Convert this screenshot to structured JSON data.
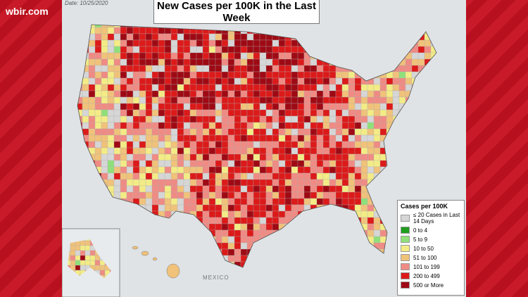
{
  "watermark": "wbir.com",
  "date": "Date: 10/25/2020",
  "title": "New Cases per 100K in the Last Week",
  "country_label": "MEXICO",
  "legend": {
    "title": "Cases per 100K",
    "items": [
      {
        "label": "≤ 20 Cases in Last 14 Days",
        "color": "#d6d6d6"
      },
      {
        "label": "0 to 4",
        "color": "#1f9e1f"
      },
      {
        "label": "5 to 9",
        "color": "#8fe07a"
      },
      {
        "label": "10 to 50",
        "color": "#f3ec86"
      },
      {
        "label": "51 to 100",
        "color": "#f0c27a"
      },
      {
        "label": "101 to 199",
        "color": "#ef8b84"
      },
      {
        "label": "200 to 499",
        "color": "#dc1a1a"
      },
      {
        "label": "500 or More",
        "color": "#9e0a14"
      }
    ]
  }
}
